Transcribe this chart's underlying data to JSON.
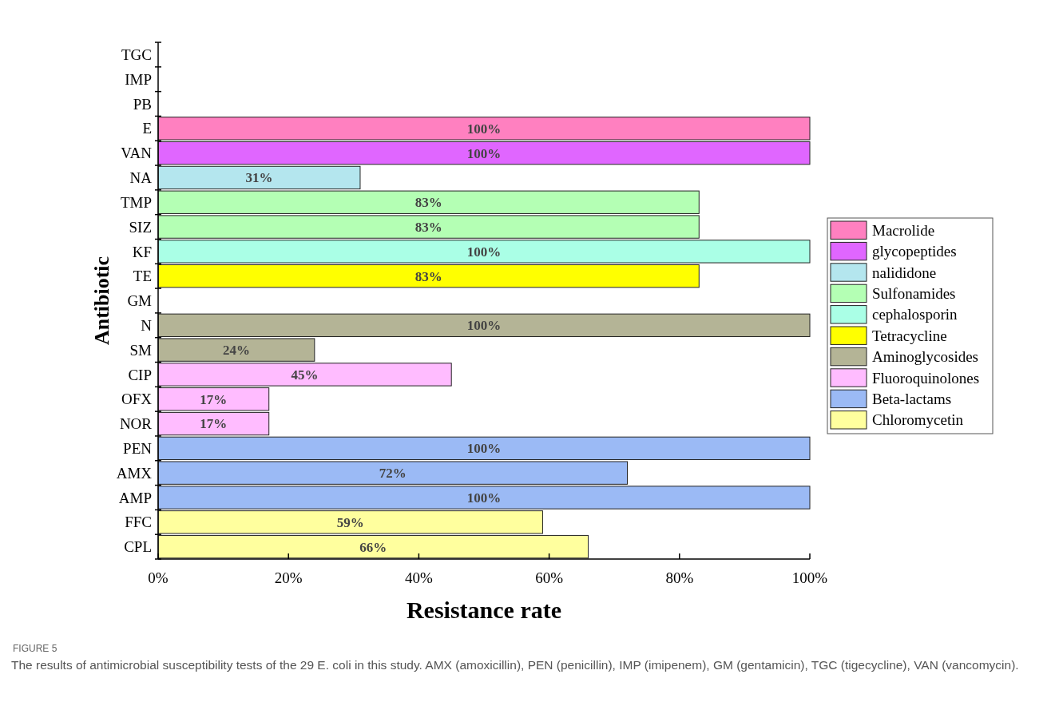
{
  "chart_data": {
    "type": "bar",
    "orientation": "horizontal",
    "stacked": true,
    "xlabel": "Resistance rate",
    "ylabel": "Antibiotic",
    "categories": [
      "TGC",
      "IMP",
      "PB",
      "E",
      "VAN",
      "NA",
      "TMP",
      "SIZ",
      "KF",
      "TE",
      "GM",
      "N",
      "SM",
      "CIP",
      "OFX",
      "NOR",
      "PEN",
      "AMX",
      "AMP",
      "FFC",
      "CPL"
    ],
    "xlim": [
      0,
      100
    ],
    "xticks": [
      {
        "value": 0,
        "label": "0%"
      },
      {
        "value": 20,
        "label": "20%"
      },
      {
        "value": 40,
        "label": "40%"
      },
      {
        "value": 60,
        "label": "60%"
      },
      {
        "value": 80,
        "label": "80%"
      },
      {
        "value": 100,
        "label": "100%"
      }
    ],
    "series": [
      {
        "name": "Macrolide",
        "color": "#ff80c0",
        "values": [
          null,
          null,
          null,
          100,
          null,
          null,
          null,
          null,
          null,
          null,
          null,
          null,
          null,
          null,
          null,
          null,
          null,
          null,
          null,
          null,
          null
        ],
        "value_labels": [
          null,
          null,
          null,
          "100%",
          null,
          null,
          null,
          null,
          null,
          null,
          null,
          null,
          null,
          null,
          null,
          null,
          null,
          null,
          null,
          null,
          null
        ]
      },
      {
        "name": "glycopeptides",
        "color": "#e066ff",
        "values": [
          null,
          null,
          null,
          null,
          100,
          null,
          null,
          null,
          null,
          null,
          null,
          null,
          null,
          null,
          null,
          null,
          null,
          null,
          null,
          null,
          null
        ],
        "value_labels": [
          null,
          null,
          null,
          null,
          "100%",
          null,
          null,
          null,
          null,
          null,
          null,
          null,
          null,
          null,
          null,
          null,
          null,
          null,
          null,
          null,
          null
        ]
      },
      {
        "name": "nalididone",
        "color": "#b4e6ee",
        "values": [
          null,
          null,
          null,
          null,
          null,
          31,
          null,
          null,
          null,
          null,
          null,
          null,
          null,
          null,
          null,
          null,
          null,
          null,
          null,
          null,
          null
        ],
        "value_labels": [
          null,
          null,
          null,
          null,
          null,
          "31%",
          null,
          null,
          null,
          null,
          null,
          null,
          null,
          null,
          null,
          null,
          null,
          null,
          null,
          null,
          null
        ]
      },
      {
        "name": "Sulfonamides",
        "color": "#b4ffb4",
        "values": [
          null,
          null,
          null,
          null,
          null,
          null,
          83,
          83,
          null,
          null,
          null,
          null,
          null,
          null,
          null,
          null,
          null,
          null,
          null,
          null,
          null
        ],
        "value_labels": [
          null,
          null,
          null,
          null,
          null,
          null,
          "83%",
          "83%",
          null,
          null,
          null,
          null,
          null,
          null,
          null,
          null,
          null,
          null,
          null,
          null,
          null
        ]
      },
      {
        "name": "cephalosporin",
        "color": "#aaffe6",
        "values": [
          null,
          null,
          null,
          null,
          null,
          null,
          null,
          null,
          100,
          null,
          null,
          null,
          null,
          null,
          null,
          null,
          null,
          null,
          null,
          null,
          null
        ],
        "value_labels": [
          null,
          null,
          null,
          null,
          null,
          null,
          null,
          null,
          "100%",
          null,
          null,
          null,
          null,
          null,
          null,
          null,
          null,
          null,
          null,
          null,
          null
        ]
      },
      {
        "name": "Tetracycline",
        "color": "#ffff00",
        "values": [
          null,
          null,
          null,
          null,
          null,
          null,
          null,
          null,
          null,
          83,
          null,
          null,
          null,
          null,
          null,
          null,
          null,
          null,
          null,
          null,
          null
        ],
        "value_labels": [
          null,
          null,
          null,
          null,
          null,
          null,
          null,
          null,
          null,
          "83%",
          null,
          null,
          null,
          null,
          null,
          null,
          null,
          null,
          null,
          null,
          null
        ]
      },
      {
        "name": "Aminoglycosides",
        "color": "#b4b496",
        "values": [
          null,
          null,
          null,
          null,
          null,
          null,
          null,
          null,
          null,
          null,
          null,
          100,
          24,
          null,
          null,
          null,
          null,
          null,
          null,
          null,
          null
        ],
        "value_labels": [
          null,
          null,
          null,
          null,
          null,
          null,
          null,
          null,
          null,
          null,
          null,
          "100%",
          "24%",
          null,
          null,
          null,
          null,
          null,
          null,
          null,
          null
        ]
      },
      {
        "name": "Fluoroquinolones",
        "color": "#ffbcff",
        "values": [
          null,
          null,
          null,
          null,
          null,
          null,
          null,
          null,
          null,
          null,
          null,
          null,
          null,
          45,
          17,
          17,
          null,
          null,
          null,
          null,
          null
        ],
        "value_labels": [
          null,
          null,
          null,
          null,
          null,
          null,
          null,
          null,
          null,
          null,
          null,
          null,
          null,
          "45%",
          "17%",
          "17%",
          null,
          null,
          null,
          null,
          null
        ]
      },
      {
        "name": "Beta-lactams",
        "color": "#9bbaf5",
        "values": [
          null,
          null,
          null,
          null,
          null,
          null,
          null,
          null,
          null,
          null,
          null,
          null,
          null,
          null,
          null,
          null,
          100,
          72,
          100,
          null,
          null
        ],
        "value_labels": [
          null,
          null,
          null,
          null,
          null,
          null,
          null,
          null,
          null,
          null,
          null,
          null,
          null,
          null,
          null,
          null,
          "100%",
          "72%",
          "100%",
          null,
          null
        ]
      },
      {
        "name": "Chloromycetin",
        "color": "#ffff9e",
        "values": [
          null,
          null,
          null,
          null,
          null,
          null,
          null,
          null,
          null,
          null,
          null,
          null,
          null,
          null,
          null,
          null,
          null,
          null,
          null,
          59,
          66
        ],
        "value_labels": [
          null,
          null,
          null,
          null,
          null,
          null,
          null,
          null,
          null,
          null,
          null,
          null,
          null,
          null,
          null,
          null,
          null,
          null,
          null,
          "59%",
          "66%"
        ]
      }
    ],
    "legend": "right",
    "annotations": [
      "FIGURE 5",
      "The results of antimicrobial susceptibility tests of the 29 E. coli in this study. AMX (amoxicillin), PEN (penicillin), IMP (imipenem), GM (gentamicin), TGC (tigecycline), VAN (vancomycin)."
    ]
  }
}
